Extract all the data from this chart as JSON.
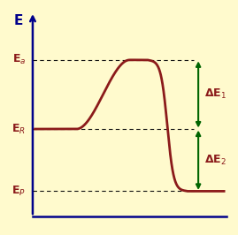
{
  "bg_color": "#FFFACD",
  "curve_color": "#8B1A1A",
  "axis_color": "#00008B",
  "dashed_color": "#111111",
  "arrow_color": "#006400",
  "label_color_red": "#8B1A1A",
  "E_P": 0.18,
  "E_R": 0.45,
  "E_a": 0.75,
  "figsize": [
    2.69,
    2.66
  ],
  "dpi": 100
}
